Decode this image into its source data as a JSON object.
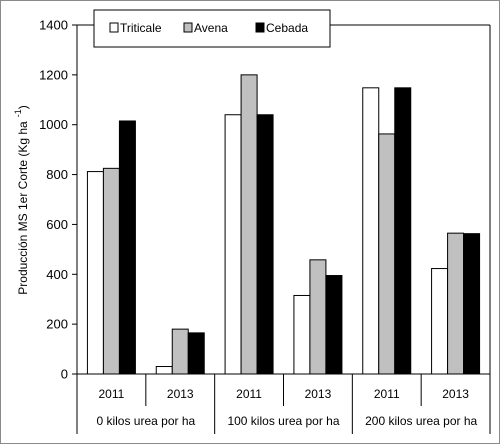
{
  "chart_data": {
    "type": "bar",
    "ylabel": "Producción MS 1er Corte (Kg ha",
    "ylabel_superscript": "-1",
    "ylabel_close": ")",
    "ylim": [
      0,
      1400
    ],
    "yticks": [
      0,
      200,
      400,
      600,
      800,
      1000,
      1200,
      1400
    ],
    "grid": false,
    "legend_position": "top-left",
    "groups": [
      {
        "label": "0 kilos urea por ha",
        "years": [
          "2011",
          "2013"
        ]
      },
      {
        "label": "100 kilos urea por ha",
        "years": [
          "2011",
          "2013"
        ]
      },
      {
        "label": "200 kilos urea por ha",
        "years": [
          "2011",
          "2013"
        ]
      }
    ],
    "categories": [
      "2011",
      "2013",
      "2011",
      "2013",
      "2011",
      "2013"
    ],
    "series": [
      {
        "name": "Triticale",
        "color": "#ffffff",
        "values": [
          812,
          30,
          1040,
          315,
          1148,
          423
        ]
      },
      {
        "name": "Avena",
        "color": "#c0c0c0",
        "values": [
          825,
          180,
          1200,
          458,
          963,
          565
        ]
      },
      {
        "name": "Cebada",
        "color": "#000000",
        "values": [
          1015,
          165,
          1040,
          395,
          1148,
          563
        ]
      }
    ]
  }
}
